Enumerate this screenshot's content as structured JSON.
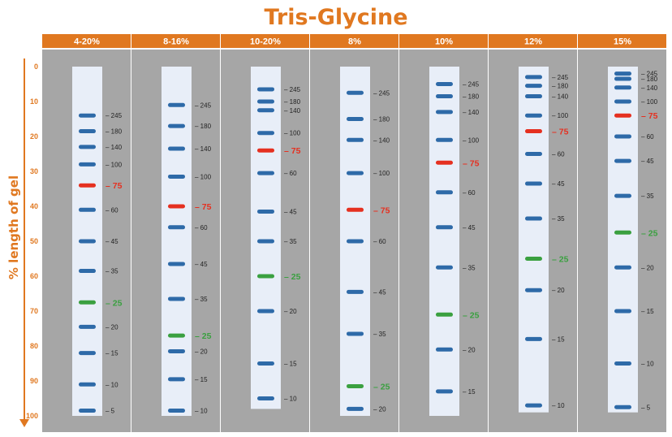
{
  "title": "Tris-Glycine",
  "chart_data": {
    "type": "table",
    "title": "Tris-Glycine",
    "ylabel": "% length of gel",
    "ylim": [
      0,
      100
    ],
    "yticks": [
      0,
      10,
      20,
      30,
      40,
      50,
      60,
      70,
      80,
      90,
      100
    ],
    "colors": {
      "header": "#e07820",
      "panel": "#a6a6a6",
      "lane": "#e8eef8",
      "band": "#2e6aa8",
      "band75": "#e53020",
      "band25": "#3aa040",
      "axis": "#e07820"
    },
    "lanes": [
      {
        "name": "4-20%",
        "lane_start": 0,
        "lane_end": 100,
        "bands": [
          {
            "label": "245",
            "y": 14
          },
          {
            "label": "180",
            "y": 18.5
          },
          {
            "label": "140",
            "y": 23
          },
          {
            "label": "100",
            "y": 28
          },
          {
            "label": "75",
            "y": 34,
            "marker": true
          },
          {
            "label": "60",
            "y": 41
          },
          {
            "label": "45",
            "y": 50
          },
          {
            "label": "35",
            "y": 58.5
          },
          {
            "label": "25",
            "y": 67.5,
            "marker": true
          },
          {
            "label": "20",
            "y": 74.5
          },
          {
            "label": "15",
            "y": 82
          },
          {
            "label": "10",
            "y": 91
          },
          {
            "label": "5",
            "y": 98.5
          }
        ]
      },
      {
        "name": "8-16%",
        "lane_start": 0,
        "lane_end": 100,
        "bands": [
          {
            "label": "245",
            "y": 11
          },
          {
            "label": "180",
            "y": 17
          },
          {
            "label": "140",
            "y": 23.5
          },
          {
            "label": "100",
            "y": 31.5
          },
          {
            "label": "75",
            "y": 40,
            "marker": true
          },
          {
            "label": "60",
            "y": 46
          },
          {
            "label": "45",
            "y": 56.5
          },
          {
            "label": "35",
            "y": 66.5
          },
          {
            "label": "25",
            "y": 77,
            "marker": true
          },
          {
            "label": "20",
            "y": 81.5
          },
          {
            "label": "15",
            "y": 89.5
          },
          {
            "label": "10",
            "y": 98.5
          }
        ]
      },
      {
        "name": "10-20%",
        "lane_start": 0,
        "lane_end": 98,
        "bands": [
          {
            "label": "245",
            "y": 6.5
          },
          {
            "label": "180",
            "y": 10
          },
          {
            "label": "140",
            "y": 12.5
          },
          {
            "label": "100",
            "y": 19
          },
          {
            "label": "75",
            "y": 24,
            "marker": true
          },
          {
            "label": "60",
            "y": 30.5
          },
          {
            "label": "45",
            "y": 41.5
          },
          {
            "label": "35",
            "y": 50
          },
          {
            "label": "25",
            "y": 60,
            "marker": true
          },
          {
            "label": "20",
            "y": 70
          },
          {
            "label": "15",
            "y": 85
          },
          {
            "label": "10",
            "y": 95
          }
        ]
      },
      {
        "name": "8%",
        "lane_start": 0,
        "lane_end": 100,
        "bands": [
          {
            "label": "245",
            "y": 7.5
          },
          {
            "label": "180",
            "y": 15
          },
          {
            "label": "140",
            "y": 21
          },
          {
            "label": "100",
            "y": 30.5
          },
          {
            "label": "75",
            "y": 41,
            "marker": true
          },
          {
            "label": "60",
            "y": 50
          },
          {
            "label": "45",
            "y": 64.5
          },
          {
            "label": "35",
            "y": 76.5
          },
          {
            "label": "25",
            "y": 91.5,
            "marker": true
          },
          {
            "label": "20",
            "y": 98
          }
        ]
      },
      {
        "name": "10%",
        "lane_start": 0,
        "lane_end": 100,
        "bands": [
          {
            "label": "245",
            "y": 5
          },
          {
            "label": "180",
            "y": 8.5
          },
          {
            "label": "140",
            "y": 13
          },
          {
            "label": "100",
            "y": 21
          },
          {
            "label": "75",
            "y": 27.5,
            "marker": true
          },
          {
            "label": "60",
            "y": 36
          },
          {
            "label": "45",
            "y": 46
          },
          {
            "label": "35",
            "y": 57.5
          },
          {
            "label": "25",
            "y": 71,
            "marker": true
          },
          {
            "label": "20",
            "y": 81
          },
          {
            "label": "15",
            "y": 93
          }
        ]
      },
      {
        "name": "12%",
        "lane_start": 0,
        "lane_end": 99,
        "bands": [
          {
            "label": "245",
            "y": 3
          },
          {
            "label": "180",
            "y": 5.5
          },
          {
            "label": "140",
            "y": 8.5
          },
          {
            "label": "100",
            "y": 14
          },
          {
            "label": "75",
            "y": 18.5,
            "marker": true
          },
          {
            "label": "60",
            "y": 25
          },
          {
            "label": "45",
            "y": 33.5
          },
          {
            "label": "35",
            "y": 43.5
          },
          {
            "label": "25",
            "y": 55,
            "marker": true
          },
          {
            "label": "20",
            "y": 64
          },
          {
            "label": "15",
            "y": 78
          },
          {
            "label": "10",
            "y": 97
          }
        ]
      },
      {
        "name": "15%",
        "lane_start": 0,
        "lane_end": 99,
        "bands": [
          {
            "label": "245",
            "y": 2
          },
          {
            "label": "180",
            "y": 3.5
          },
          {
            "label": "140",
            "y": 6
          },
          {
            "label": "100",
            "y": 10
          },
          {
            "label": "75",
            "y": 14,
            "marker": true
          },
          {
            "label": "60",
            "y": 20
          },
          {
            "label": "45",
            "y": 27
          },
          {
            "label": "35",
            "y": 37
          },
          {
            "label": "25",
            "y": 47.5,
            "marker": true
          },
          {
            "label": "20",
            "y": 57.5
          },
          {
            "label": "15",
            "y": 70
          },
          {
            "label": "10",
            "y": 85
          },
          {
            "label": "5",
            "y": 97.5
          }
        ]
      }
    ]
  }
}
